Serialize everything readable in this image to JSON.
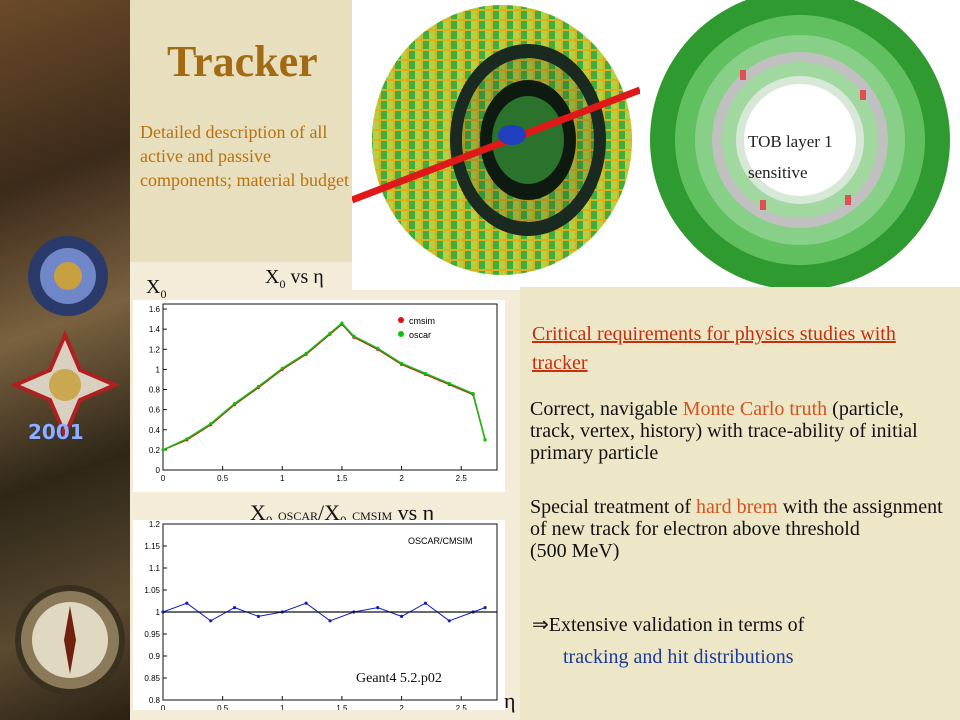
{
  "slide": {
    "title": "Tracker",
    "description": "Detailed description of all active and passive components; material budget",
    "tob_label_1": "TOB layer 1",
    "tob_label_2": "sensitive",
    "ls_year": "2001"
  },
  "plot1": {
    "label_main": "X",
    "label_sub": "0",
    "label_vs": "vs η",
    "ylabel_main": "X",
    "ylabel_sub": "0",
    "legend": [
      "cmsim",
      "oscar"
    ],
    "y_ticks": [
      "1.6",
      "1.4",
      "1.2",
      "1",
      "0.8",
      "0.6",
      "0.4",
      "0.2",
      "0"
    ],
    "x_ticks": [
      "0",
      "0.5",
      "1",
      "1.5",
      "2",
      "2.5"
    ]
  },
  "plot2": {
    "label_x1": "X",
    "label_sub1": "0",
    "label_small1": "OSCAR",
    "label_slash": "/X",
    "label_sub2": "0",
    "label_small2": "CMSIM",
    "label_vs": "vs η",
    "legend": "OSCAR/CMSIM",
    "y_ticks": [
      "1.2",
      "1.15",
      "1.1",
      "1.05",
      "1",
      "0.95",
      "0.9",
      "0.85",
      "0.8"
    ],
    "x_ticks": [
      "0",
      "0.5",
      "1",
      "1.5",
      "2",
      "2.5"
    ],
    "footer": "Geant4 5.2.p02",
    "eta_label": "η"
  },
  "textbox": {
    "critical": "Critical requirements for physics studies with tracker",
    "p1_a": "Correct, navigable ",
    "p1_hl": "Monte Carlo truth",
    "p1_b": " (particle, track, vertex, history) with trace-ability of initial primary particle",
    "p2_a": "Special treatment of ",
    "p2_hl": "hard brem",
    "p2_b": " with the assignment of new track for electron above threshold",
    "p2_c": "(500 MeV)",
    "arrow": "⇒",
    "p3": "Extensive validation in terms of",
    "p4": "tracking and hit distributions"
  },
  "chart_data": [
    {
      "type": "scatter",
      "xlabel": "η",
      "ylabel": "X0",
      "xlim": [
        0,
        2.8
      ],
      "ylim": [
        0,
        1.65
      ],
      "series": [
        {
          "name": "cmsim",
          "color": "#e01010",
          "x": [
            0,
            0.2,
            0.4,
            0.6,
            0.8,
            1.0,
            1.2,
            1.4,
            1.5,
            1.6,
            1.8,
            2.0,
            2.2,
            2.4,
            2.6,
            2.7
          ],
          "y": [
            0.2,
            0.3,
            0.45,
            0.65,
            0.82,
            1.0,
            1.15,
            1.35,
            1.45,
            1.32,
            1.2,
            1.05,
            0.95,
            0.85,
            0.75,
            0.3
          ]
        },
        {
          "name": "oscar",
          "color": "#10c010",
          "x": [
            0,
            0.2,
            0.4,
            0.6,
            0.8,
            1.0,
            1.2,
            1.4,
            1.5,
            1.6,
            1.8,
            2.0,
            2.2,
            2.4,
            2.6,
            2.7
          ],
          "y": [
            0.2,
            0.31,
            0.46,
            0.66,
            0.83,
            1.01,
            1.16,
            1.36,
            1.46,
            1.33,
            1.21,
            1.06,
            0.96,
            0.86,
            0.76,
            0.3
          ]
        }
      ]
    },
    {
      "type": "line",
      "xlabel": "η",
      "ylabel": "",
      "xlim": [
        0,
        2.8
      ],
      "ylim": [
        0.8,
        1.2
      ],
      "series": [
        {
          "name": "OSCAR/CMSIM",
          "color": "#1020c0",
          "x": [
            0,
            0.2,
            0.4,
            0.6,
            0.8,
            1.0,
            1.2,
            1.4,
            1.6,
            1.8,
            2.0,
            2.2,
            2.4,
            2.6,
            2.7
          ],
          "y": [
            1.0,
            1.02,
            0.98,
            1.01,
            0.99,
            1.0,
            1.02,
            0.98,
            1.0,
            1.01,
            0.99,
            1.02,
            0.98,
            1.0,
            1.01
          ]
        }
      ]
    }
  ],
  "colors": {
    "title": "#a36a14",
    "description": "#b8720e",
    "critical": "#c23010",
    "highlight": "#d2541e",
    "sub_blue": "#1a3a9a"
  }
}
